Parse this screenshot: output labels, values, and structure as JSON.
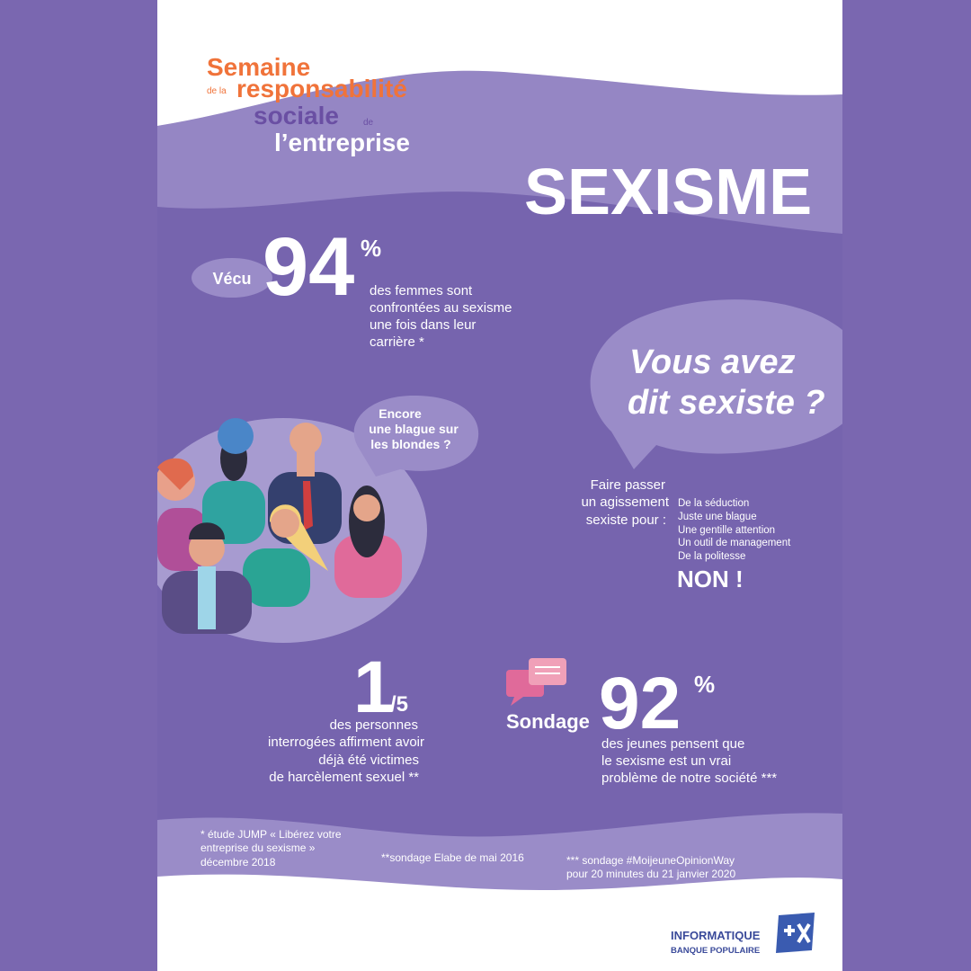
{
  "header": {
    "line1": "Semaine",
    "prefix2": "de la",
    "line2": "responsabilité",
    "line3": "sociale",
    "suffix3": "de",
    "line4": "l’entreprise"
  },
  "title": "SEXISME",
  "stat1": {
    "tag": "Vécu",
    "number": 94,
    "unit": "%",
    "text": [
      "des femmes sont",
      "confrontées au sexisme",
      "une fois dans leur",
      "carrière *"
    ]
  },
  "bubble": [
    "Vous avez",
    "dit sexiste ?"
  ],
  "speech": [
    "Encore",
    "une blague sur",
    "les blondes ?"
  ],
  "list": {
    "intro": [
      "Faire passer",
      "un agissement",
      "sexiste pour :"
    ],
    "items": [
      "De la séduction",
      "Juste une blague",
      "Une gentille attention",
      "Un outil de management",
      "De la politesse"
    ],
    "conclusion": "NON !"
  },
  "stat2": {
    "number": 1,
    "denominator": "/5",
    "text": [
      "des personnes",
      "interrogées affirment avoir",
      "déjà été victimes",
      "de harcèlement sexuel **"
    ]
  },
  "stat3": {
    "tag": "Sondage",
    "number": 92,
    "unit": "%",
    "text": [
      "des jeunes pensent que",
      "le sexisme est un vrai",
      "problème de notre société ***"
    ]
  },
  "footnotes": [
    [
      "* étude JUMP « Libérez votre",
      "entreprise du sexisme »",
      "décembre 2018"
    ],
    [
      "**sondage Elabe de mai 2016"
    ],
    [
      "*** sondage #MoijeuneOpinionWay",
      "pour 20 minutes du 21 janvier 2020"
    ]
  ],
  "logo": {
    "name": "INFORMATIQUE",
    "brand": "BANQUE POPULAIRE"
  }
}
